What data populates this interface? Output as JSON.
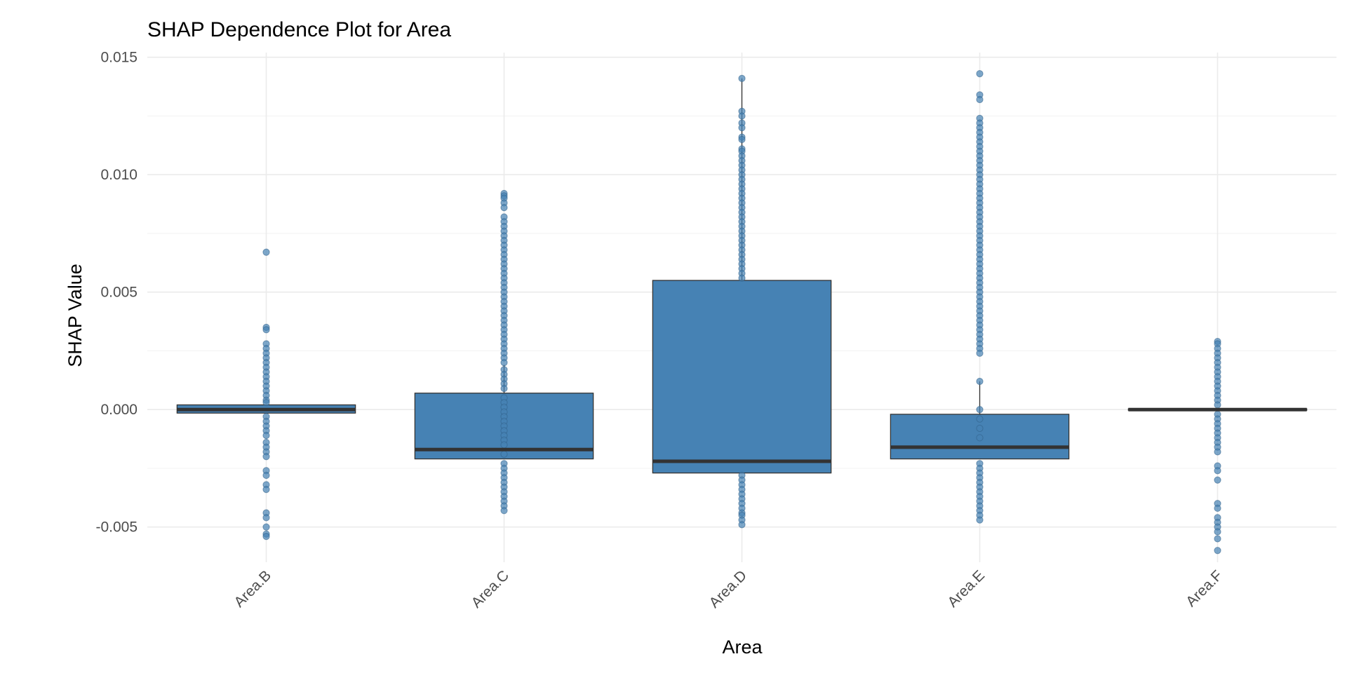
{
  "chart_data": {
    "type": "boxplot",
    "title": "SHAP Dependence Plot for Area",
    "xlabel": "Area",
    "ylabel": "SHAP Value",
    "ylim": [
      -0.0065,
      0.0152
    ],
    "yticks": [
      -0.005,
      0.0,
      0.005,
      0.01,
      0.015
    ],
    "ytick_labels": [
      "-0.005",
      "0.000",
      "0.005",
      "0.010",
      "0.015"
    ],
    "grid": true,
    "legend": "none",
    "colors": {
      "box_fill": "#4682b4",
      "points": "#4682b4",
      "outline": "#333333"
    },
    "categories": [
      "Area.B",
      "Area.C",
      "Area.D",
      "Area.E",
      "Area.F"
    ],
    "boxes": [
      {
        "category": "Area.B",
        "q1": -0.00015,
        "median": 0.0,
        "q3": 0.0002,
        "whisker_low": -0.00015,
        "whisker_high": 0.0002,
        "points": [
          0.0067,
          0.0035,
          0.0034,
          0.0028,
          0.0026,
          0.0024,
          0.0022,
          0.002,
          0.0018,
          0.0016,
          0.0014,
          0.0012,
          0.001,
          0.0008,
          0.0006,
          0.0004,
          0.0003,
          -0.0003,
          -0.0005,
          -0.0007,
          -0.0009,
          -0.0011,
          -0.0014,
          -0.0016,
          -0.0018,
          -0.002,
          -0.0026,
          -0.0028,
          -0.0032,
          -0.0034,
          -0.0044,
          -0.0046,
          -0.005,
          -0.0053,
          -0.0054
        ]
      },
      {
        "category": "Area.C",
        "q1": -0.0021,
        "median": -0.0017,
        "q3": 0.0007,
        "whisker_low": -0.0021,
        "whisker_high": 0.0019,
        "points": [
          0.0092,
          0.0091,
          0.009,
          0.0088,
          0.0086,
          0.0082,
          0.008,
          0.0078,
          0.0076,
          0.0074,
          0.0072,
          0.007,
          0.0068,
          0.0066,
          0.0064,
          0.0062,
          0.006,
          0.0058,
          0.0056,
          0.0054,
          0.0052,
          0.005,
          0.0048,
          0.0046,
          0.0044,
          0.0042,
          0.004,
          0.0038,
          0.0036,
          0.0034,
          0.0032,
          0.003,
          0.0028,
          0.0026,
          0.0024,
          0.0022,
          0.002,
          0.0017,
          0.0015,
          0.0013,
          0.0011,
          0.0009,
          0.0005,
          0.0003,
          0.0001,
          -0.0001,
          -0.0003,
          -0.0005,
          -0.0007,
          -0.0009,
          -0.0011,
          -0.0013,
          -0.0015,
          -0.0019,
          -0.0023,
          -0.0025,
          -0.0027,
          -0.0029,
          -0.0031,
          -0.0033,
          -0.0035,
          -0.0037,
          -0.0039,
          -0.0041,
          -0.0043
        ]
      },
      {
        "category": "Area.D",
        "q1": -0.0027,
        "median": -0.0022,
        "q3": 0.0055,
        "whisker_low": -0.0027,
        "whisker_high": 0.0141,
        "points": [
          0.0141,
          0.0127,
          0.0125,
          0.0122,
          0.012,
          0.0116,
          0.0115,
          0.0111,
          0.011,
          0.0108,
          0.0106,
          0.0104,
          0.0102,
          0.01,
          0.0098,
          0.0096,
          0.0094,
          0.0092,
          0.009,
          0.0088,
          0.0086,
          0.0084,
          0.0082,
          0.008,
          0.0078,
          0.0076,
          0.0074,
          0.0072,
          0.007,
          0.0068,
          0.0066,
          0.0064,
          0.0062,
          0.006,
          0.0058,
          0.0056,
          -0.0028,
          -0.003,
          -0.0032,
          -0.0034,
          -0.0036,
          -0.0038,
          -0.004,
          -0.0042,
          -0.0044,
          -0.0045,
          -0.0047,
          -0.0049
        ]
      },
      {
        "category": "Area.E",
        "q1": -0.0021,
        "median": -0.0016,
        "q3": -0.0002,
        "whisker_low": -0.0021,
        "whisker_high": 0.0012,
        "points": [
          0.0143,
          0.0134,
          0.0132,
          0.0124,
          0.0122,
          0.012,
          0.0118,
          0.0116,
          0.0114,
          0.0112,
          0.011,
          0.0108,
          0.0106,
          0.0104,
          0.0102,
          0.01,
          0.0098,
          0.0096,
          0.0094,
          0.0092,
          0.009,
          0.0088,
          0.0086,
          0.0084,
          0.0082,
          0.008,
          0.0078,
          0.0076,
          0.0074,
          0.0072,
          0.007,
          0.0068,
          0.0066,
          0.0064,
          0.0062,
          0.006,
          0.0058,
          0.0056,
          0.0054,
          0.0052,
          0.005,
          0.0048,
          0.0046,
          0.0044,
          0.0042,
          0.004,
          0.0038,
          0.0036,
          0.0034,
          0.0032,
          0.003,
          0.0028,
          0.0026,
          0.0024,
          0.0012,
          0.0,
          -0.0004,
          -0.0008,
          -0.0012,
          -0.0023,
          -0.0025,
          -0.0027,
          -0.0029,
          -0.0031,
          -0.0033,
          -0.0035,
          -0.0037,
          -0.0039,
          -0.0041,
          -0.0043,
          -0.0045,
          -0.0047
        ]
      },
      {
        "category": "Area.F",
        "q1": -3e-05,
        "median": 0.0,
        "q3": 3e-05,
        "whisker_low": -3e-05,
        "whisker_high": 3e-05,
        "points": [
          0.0029,
          0.0028,
          0.0026,
          0.0024,
          0.0022,
          0.002,
          0.0018,
          0.0016,
          0.0014,
          0.0012,
          0.001,
          0.0008,
          0.0006,
          0.0004,
          0.0002,
          -0.0002,
          -0.0004,
          -0.0006,
          -0.0008,
          -0.001,
          -0.0012,
          -0.0014,
          -0.0016,
          -0.0018,
          -0.0024,
          -0.0026,
          -0.003,
          -0.004,
          -0.0042,
          -0.0046,
          -0.0048,
          -0.005,
          -0.0052,
          -0.0055,
          -0.006
        ]
      }
    ]
  }
}
